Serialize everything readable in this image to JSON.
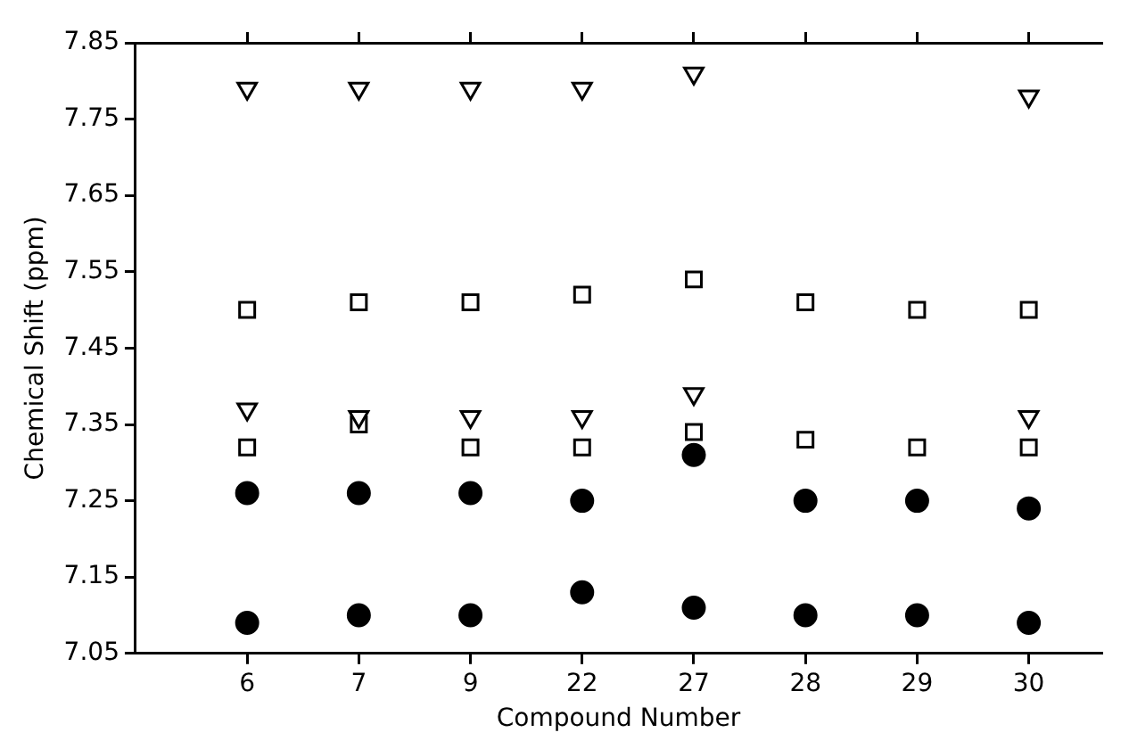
{
  "chart_data": {
    "type": "scatter",
    "xlabel": "Compound Number",
    "ylabel": "Chemical Shift (ppm)",
    "categories": [
      "6",
      "7",
      "9",
      "22",
      "27",
      "28",
      "29",
      "30"
    ],
    "ylim": [
      7.05,
      7.85
    ],
    "yticks": [
      7.05,
      7.15,
      7.25,
      7.35,
      7.45,
      7.55,
      7.65,
      7.75,
      7.85
    ],
    "grid": false,
    "series": [
      {
        "color": "#000000",
        "marker": "triangle",
        "values": [
          7.79,
          7.79,
          7.79,
          7.79,
          7.81,
          null,
          null,
          7.78
        ]
      },
      {
        "color": "#000000",
        "marker": "square",
        "values": [
          7.5,
          7.51,
          7.51,
          7.52,
          7.54,
          7.51,
          7.5,
          7.5
        ]
      },
      {
        "color": "#000000",
        "marker": "triangle",
        "values": [
          7.37,
          7.36,
          7.36,
          7.36,
          7.39,
          null,
          null,
          7.36
        ]
      },
      {
        "color": "#000000",
        "marker": "square",
        "values": [
          7.32,
          7.35,
          7.32,
          7.32,
          7.34,
          7.33,
          7.32,
          7.32
        ]
      },
      {
        "color": "#000000",
        "marker": "circle",
        "values": [
          7.26,
          7.26,
          7.26,
          7.25,
          7.31,
          7.25,
          7.25,
          7.24
        ]
      },
      {
        "color": "#000000",
        "marker": "circle",
        "values": [
          7.09,
          7.1,
          7.1,
          7.13,
          7.11,
          7.1,
          7.1,
          7.09
        ]
      }
    ]
  }
}
